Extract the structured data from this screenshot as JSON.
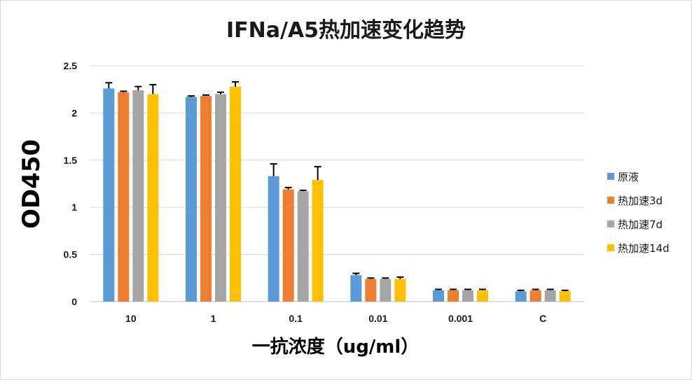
{
  "chart_data": {
    "type": "bar",
    "title": "IFNa/A5热加速变化趋势",
    "xlabel": "一抗浓度（ug/ml）",
    "ylabel": "OD450",
    "categories": [
      "10",
      "1",
      "0.1",
      "0.01",
      "0.001",
      "C"
    ],
    "ylim": [
      0,
      2.5
    ],
    "yticks": [
      "0",
      "0.5",
      "1",
      "1.5",
      "2",
      "2.5"
    ],
    "grid": true,
    "legend_position": "right",
    "series": [
      {
        "name": "原液",
        "color": "#5B9BD5",
        "values": [
          2.26,
          2.17,
          1.33,
          0.28,
          0.12,
          0.11
        ],
        "errors": [
          0.06,
          0.01,
          0.13,
          0.02,
          0.01,
          0.01
        ]
      },
      {
        "name": "热加速3d",
        "color": "#ED7D31",
        "values": [
          2.22,
          2.18,
          1.19,
          0.24,
          0.12,
          0.12
        ],
        "errors": [
          0.01,
          0.01,
          0.02,
          0.01,
          0.01,
          0.01
        ]
      },
      {
        "name": "热加速7d",
        "color": "#A5A5A5",
        "values": [
          2.24,
          2.2,
          1.17,
          0.24,
          0.12,
          0.12
        ],
        "errors": [
          0.04,
          0.02,
          0.01,
          0.01,
          0.01,
          0.01
        ]
      },
      {
        "name": "热加速14d",
        "color": "#FFC000",
        "values": [
          2.2,
          2.28,
          1.29,
          0.24,
          0.12,
          0.11
        ],
        "errors": [
          0.1,
          0.05,
          0.14,
          0.02,
          0.01,
          0.01
        ]
      }
    ]
  }
}
